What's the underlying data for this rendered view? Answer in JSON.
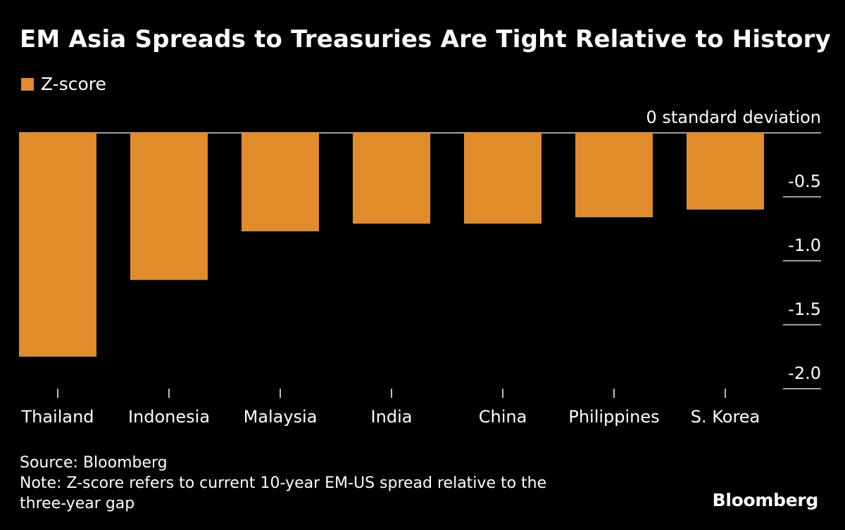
{
  "title": "EM Asia Spreads to Treasuries Are Tight Relative to History",
  "legend": {
    "label": "Z-score",
    "color": "#E08C2A"
  },
  "source": "Source: Bloomberg",
  "note_line1": "Note: Z-score refers to current 10-year EM-US spread relative to the",
  "note_line2": "three-year gap",
  "brand": "Bloomberg",
  "chart_data": {
    "type": "bar",
    "title": "EM Asia Spreads to Treasuries Are Tight Relative to History",
    "series": [
      {
        "name": "Z-score",
        "color": "#E08C2A",
        "values": [
          -1.75,
          -1.15,
          -0.77,
          -0.71,
          -0.71,
          -0.66,
          -0.6
        ]
      }
    ],
    "categories": [
      "Thailand",
      "Indonesia",
      "Malaysia",
      "India",
      "China",
      "Philippines",
      "S. Korea"
    ],
    "yticks": [
      {
        "value": 0,
        "label": "0 standard deviation"
      },
      {
        "value": -0.5,
        "label": "-0.5"
      },
      {
        "value": -1.0,
        "label": "-1.0"
      },
      {
        "value": -1.5,
        "label": "-1.5"
      },
      {
        "value": -2.0,
        "label": "-2.0"
      }
    ],
    "ylim": [
      -2.0,
      0
    ],
    "xlabel": "",
    "ylabel": ""
  }
}
